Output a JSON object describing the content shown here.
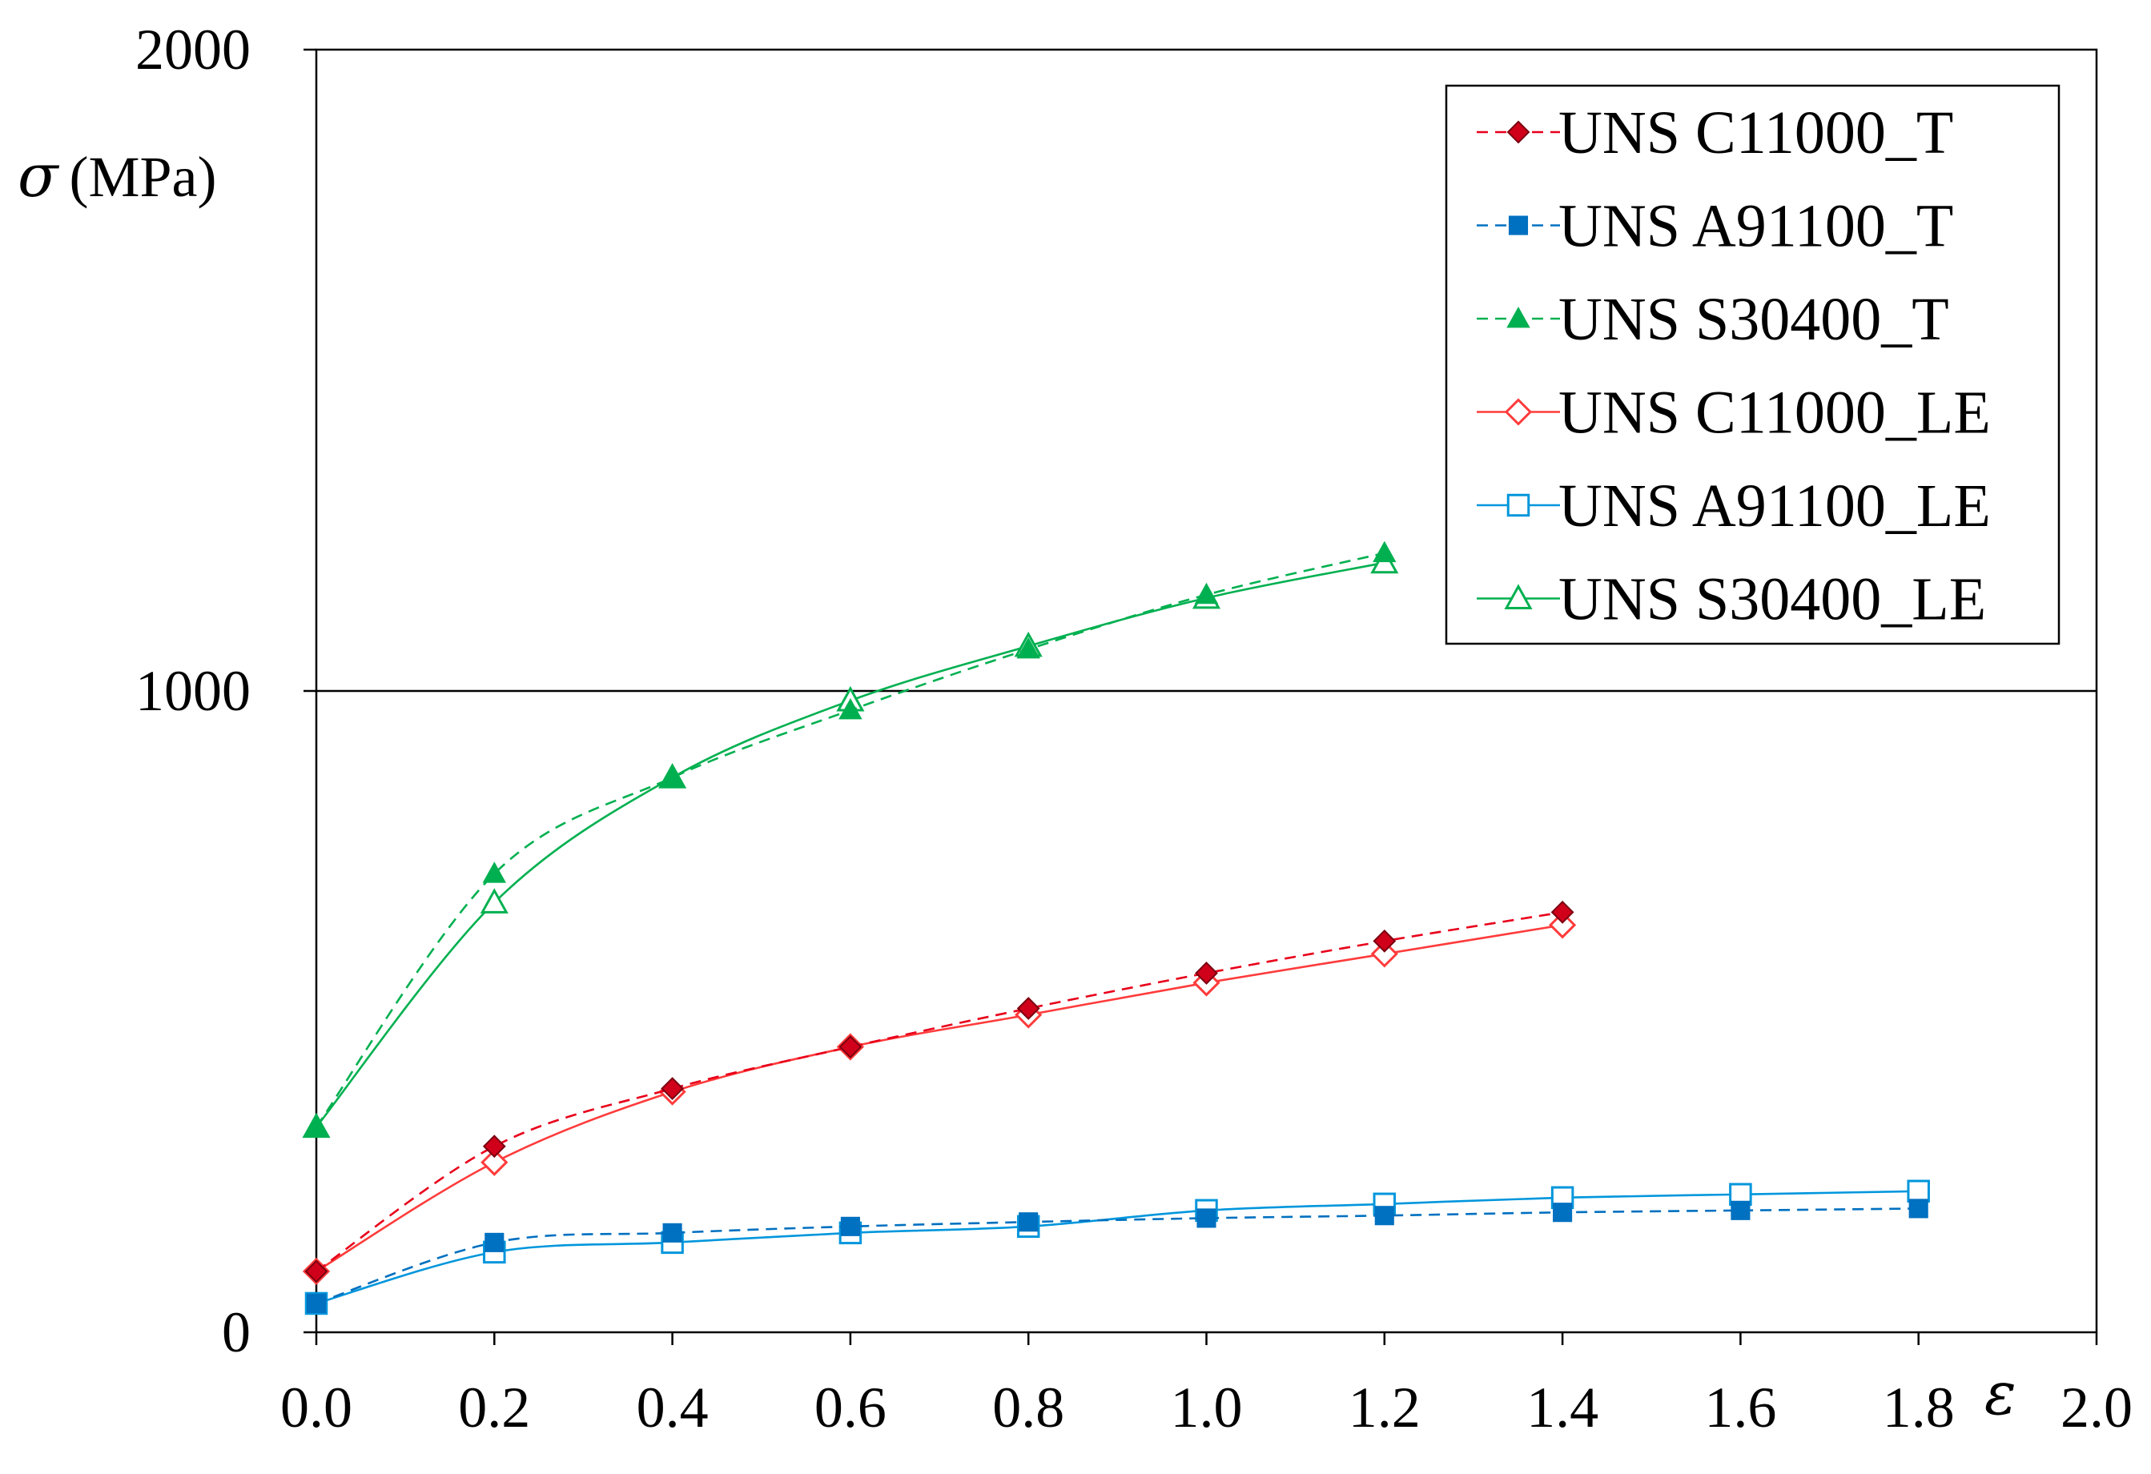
{
  "chart_data": {
    "type": "line",
    "title": "",
    "xlabel": "ε",
    "ylabel": "σ (MPa)",
    "ylabel_symbol": "σ",
    "ylabel_unit": "(MPa)",
    "xlim": [
      0.0,
      2.0
    ],
    "ylim": [
      0,
      2000
    ],
    "x_ticks": [
      "0.0",
      "0.2",
      "0.4",
      "0.6",
      "0.8",
      "1.0",
      "1.2",
      "1.4",
      "1.6",
      "1.8",
      "2.0"
    ],
    "y_ticks": [
      "0",
      "1000",
      "2000"
    ],
    "grid": "horizontal at 1000",
    "legend_position": "top-right",
    "series": [
      {
        "name": "UNS C11000_T",
        "color": "#e8001a",
        "marker": "diamond-filled",
        "line": "dashed",
        "x": [
          0.0,
          0.2,
          0.4,
          0.6,
          0.8,
          1.0,
          1.2,
          1.4
        ],
        "y": [
          95,
          290,
          380,
          445,
          505,
          560,
          610,
          655
        ]
      },
      {
        "name": "UNS A91100_T",
        "color": "#0070c0",
        "marker": "square-filled",
        "line": "dashed",
        "x": [
          0.0,
          0.2,
          0.4,
          0.6,
          0.8,
          1.0,
          1.2,
          1.4,
          1.6,
          1.8
        ],
        "y": [
          45,
          140,
          155,
          165,
          172,
          178,
          182,
          187,
          190,
          193
        ]
      },
      {
        "name": "UNS S30400_T",
        "color": "#00b050",
        "marker": "triangle-filled",
        "line": "dashed",
        "x": [
          0.0,
          0.2,
          0.4,
          0.6,
          0.8,
          1.0,
          1.2
        ],
        "y": [
          320,
          715,
          865,
          970,
          1065,
          1150,
          1215
        ]
      },
      {
        "name": "UNS C11000_LE",
        "color": "#ff3b3b",
        "marker": "diamond-open",
        "line": "solid",
        "x": [
          0.0,
          0.2,
          0.4,
          0.6,
          0.8,
          1.0,
          1.2,
          1.4
        ],
        "y": [
          95,
          265,
          375,
          445,
          495,
          545,
          590,
          635
        ]
      },
      {
        "name": "UNS A91100_LE",
        "color": "#0096dc",
        "marker": "square-open",
        "line": "solid",
        "x": [
          0.0,
          0.2,
          0.4,
          0.6,
          0.8,
          1.0,
          1.2,
          1.4,
          1.6,
          1.8
        ],
        "y": [
          45,
          125,
          140,
          155,
          165,
          190,
          200,
          210,
          215,
          220
        ]
      },
      {
        "name": "UNS S30400_LE",
        "color": "#00b050",
        "marker": "triangle-open",
        "line": "solid",
        "x": [
          0.0,
          0.2,
          0.4,
          0.6,
          0.8,
          1.0,
          1.2
        ],
        "y": [
          320,
          670,
          865,
          985,
          1070,
          1145,
          1200
        ]
      }
    ]
  }
}
